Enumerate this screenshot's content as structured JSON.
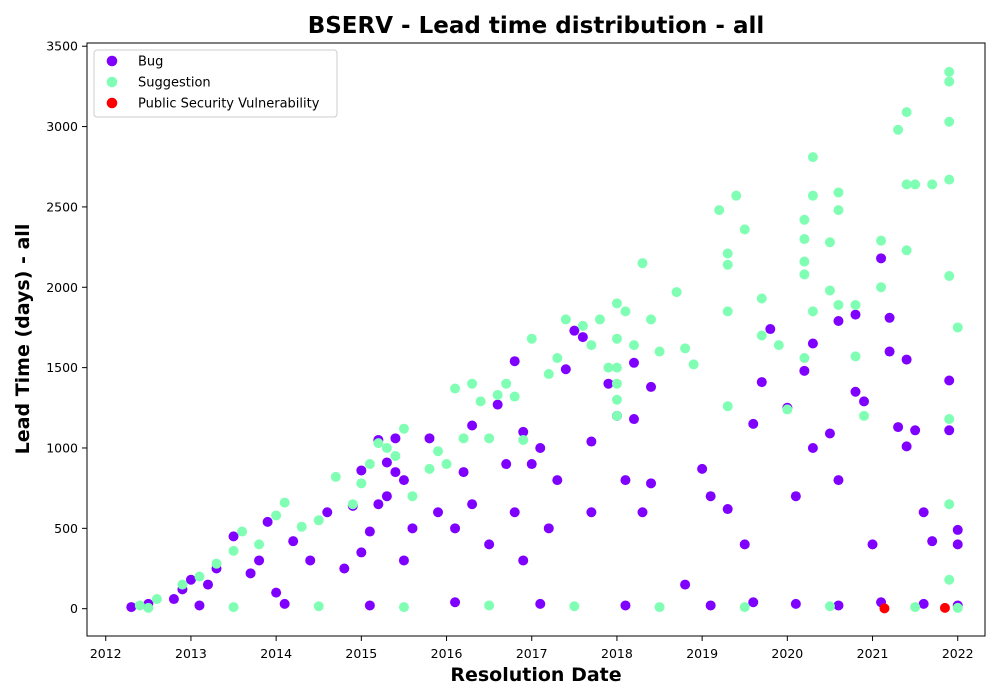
{
  "chart_data": {
    "type": "scatter",
    "title": "BSERV - Lead time distribution - all",
    "xlabel": "Resolution Date",
    "ylabel": "Lead Time (days) - all",
    "xlim": [
      2011.78,
      2022.32
    ],
    "ylim": [
      -170,
      3520
    ],
    "x_ticks": [
      2012,
      2013,
      2014,
      2015,
      2016,
      2017,
      2018,
      2019,
      2020,
      2021,
      2022
    ],
    "y_ticks": [
      0,
      500,
      1000,
      1500,
      2000,
      2500,
      3000,
      3500
    ],
    "grid": false,
    "legend_position": "top-left",
    "series": [
      {
        "name": "Bug",
        "color": "#8000ff",
        "points": [
          [
            2012.3,
            10
          ],
          [
            2012.5,
            30
          ],
          [
            2012.8,
            60
          ],
          [
            2012.9,
            120
          ],
          [
            2013.0,
            180
          ],
          [
            2013.2,
            150
          ],
          [
            2013.3,
            250
          ],
          [
            2013.5,
            450
          ],
          [
            2013.7,
            220
          ],
          [
            2013.8,
            300
          ],
          [
            2013.9,
            540
          ],
          [
            2014.0,
            100
          ],
          [
            2014.2,
            420
          ],
          [
            2014.4,
            300
          ],
          [
            2014.6,
            600
          ],
          [
            2014.8,
            250
          ],
          [
            2014.9,
            640
          ],
          [
            2015.0,
            350
          ],
          [
            2015.0,
            860
          ],
          [
            2015.1,
            480
          ],
          [
            2015.2,
            650
          ],
          [
            2015.2,
            1050
          ],
          [
            2015.3,
            700
          ],
          [
            2015.3,
            910
          ],
          [
            2015.4,
            1060
          ],
          [
            2015.4,
            850
          ],
          [
            2015.5,
            800
          ],
          [
            2015.5,
            300
          ],
          [
            2015.6,
            500
          ],
          [
            2015.8,
            1060
          ],
          [
            2015.9,
            600
          ],
          [
            2016.1,
            500
          ],
          [
            2016.2,
            850
          ],
          [
            2016.3,
            650
          ],
          [
            2016.3,
            1140
          ],
          [
            2016.5,
            400
          ],
          [
            2016.6,
            1270
          ],
          [
            2016.7,
            900
          ],
          [
            2016.8,
            600
          ],
          [
            2016.8,
            1540
          ],
          [
            2016.9,
            1100
          ],
          [
            2016.9,
            300
          ],
          [
            2017.0,
            900
          ],
          [
            2017.1,
            1000
          ],
          [
            2017.2,
            500
          ],
          [
            2017.3,
            800
          ],
          [
            2017.4,
            1490
          ],
          [
            2017.5,
            1730
          ],
          [
            2017.6,
            1690
          ],
          [
            2017.7,
            1040
          ],
          [
            2017.7,
            600
          ],
          [
            2017.9,
            1400
          ],
          [
            2018.0,
            1200
          ],
          [
            2018.1,
            800
          ],
          [
            2018.2,
            1180
          ],
          [
            2018.2,
            1530
          ],
          [
            2018.3,
            600
          ],
          [
            2018.4,
            780
          ],
          [
            2018.4,
            1380
          ],
          [
            2018.8,
            150
          ],
          [
            2019.0,
            870
          ],
          [
            2019.1,
            700
          ],
          [
            2019.3,
            620
          ],
          [
            2019.5,
            400
          ],
          [
            2019.6,
            1150
          ],
          [
            2019.7,
            1410
          ],
          [
            2019.8,
            1740
          ],
          [
            2020.0,
            1250
          ],
          [
            2020.1,
            700
          ],
          [
            2020.2,
            1480
          ],
          [
            2020.3,
            1650
          ],
          [
            2020.3,
            1000
          ],
          [
            2020.5,
            1090
          ],
          [
            2020.6,
            1790
          ],
          [
            2020.6,
            800
          ],
          [
            2020.8,
            1830
          ],
          [
            2020.8,
            1350
          ],
          [
            2020.9,
            1290
          ],
          [
            2021.0,
            400
          ],
          [
            2021.1,
            2180
          ],
          [
            2021.2,
            1810
          ],
          [
            2021.2,
            1600
          ],
          [
            2021.3,
            1130
          ],
          [
            2021.4,
            1010
          ],
          [
            2021.4,
            1550
          ],
          [
            2021.5,
            1110
          ],
          [
            2021.6,
            600
          ],
          [
            2021.7,
            420
          ],
          [
            2021.9,
            1420
          ],
          [
            2021.9,
            1110
          ],
          [
            2022.0,
            490
          ],
          [
            2022.0,
            400
          ],
          [
            2022.0,
            20
          ],
          [
            2013.1,
            20
          ],
          [
            2014.1,
            30
          ],
          [
            2015.1,
            20
          ],
          [
            2016.1,
            40
          ],
          [
            2017.1,
            30
          ],
          [
            2018.1,
            20
          ],
          [
            2019.1,
            20
          ],
          [
            2019.6,
            40
          ],
          [
            2020.1,
            30
          ],
          [
            2020.6,
            20
          ],
          [
            2021.1,
            40
          ],
          [
            2021.6,
            30
          ]
        ]
      },
      {
        "name": "Suggestion",
        "color": "#80ffb4",
        "points": [
          [
            2012.4,
            20
          ],
          [
            2012.6,
            60
          ],
          [
            2012.9,
            150
          ],
          [
            2013.1,
            200
          ],
          [
            2013.3,
            280
          ],
          [
            2013.5,
            360
          ],
          [
            2013.6,
            480
          ],
          [
            2013.8,
            400
          ],
          [
            2014.0,
            580
          ],
          [
            2014.1,
            660
          ],
          [
            2014.3,
            510
          ],
          [
            2014.5,
            550
          ],
          [
            2014.7,
            820
          ],
          [
            2014.9,
            650
          ],
          [
            2015.0,
            780
          ],
          [
            2015.1,
            900
          ],
          [
            2015.2,
            1030
          ],
          [
            2015.3,
            1000
          ],
          [
            2015.4,
            950
          ],
          [
            2015.5,
            1120
          ],
          [
            2015.6,
            700
          ],
          [
            2015.8,
            870
          ],
          [
            2015.9,
            980
          ],
          [
            2016.0,
            900
          ],
          [
            2016.1,
            1370
          ],
          [
            2016.2,
            1060
          ],
          [
            2016.3,
            1400
          ],
          [
            2016.4,
            1290
          ],
          [
            2016.5,
            1060
          ],
          [
            2016.6,
            1330
          ],
          [
            2016.7,
            1400
          ],
          [
            2016.8,
            1320
          ],
          [
            2016.9,
            1050
          ],
          [
            2017.0,
            1680
          ],
          [
            2017.2,
            1460
          ],
          [
            2017.3,
            1560
          ],
          [
            2017.4,
            1800
          ],
          [
            2017.6,
            1760
          ],
          [
            2017.7,
            1640
          ],
          [
            2017.8,
            1800
          ],
          [
            2017.9,
            1500
          ],
          [
            2018.0,
            1900
          ],
          [
            2018.0,
            1680
          ],
          [
            2018.0,
            1500
          ],
          [
            2018.0,
            1400
          ],
          [
            2018.0,
            1300
          ],
          [
            2018.0,
            1200
          ],
          [
            2018.1,
            1850
          ],
          [
            2018.2,
            1640
          ],
          [
            2018.3,
            2150
          ],
          [
            2018.4,
            1800
          ],
          [
            2018.5,
            1600
          ],
          [
            2018.7,
            1970
          ],
          [
            2018.8,
            1620
          ],
          [
            2018.9,
            1520
          ],
          [
            2019.2,
            2480
          ],
          [
            2019.3,
            2210
          ],
          [
            2019.3,
            2140
          ],
          [
            2019.4,
            2570
          ],
          [
            2019.5,
            2360
          ],
          [
            2019.3,
            1850
          ],
          [
            2019.3,
            1260
          ],
          [
            2019.7,
            1700
          ],
          [
            2019.7,
            1930
          ],
          [
            2019.9,
            1640
          ],
          [
            2020.0,
            1240
          ],
          [
            2020.2,
            2420
          ],
          [
            2020.2,
            2300
          ],
          [
            2020.2,
            2160
          ],
          [
            2020.2,
            2080
          ],
          [
            2020.3,
            2810
          ],
          [
            2020.3,
            2570
          ],
          [
            2020.3,
            1850
          ],
          [
            2020.2,
            1560
          ],
          [
            2020.5,
            2280
          ],
          [
            2020.5,
            1980
          ],
          [
            2020.6,
            2590
          ],
          [
            2020.6,
            2480
          ],
          [
            2020.6,
            1890
          ],
          [
            2020.8,
            1890
          ],
          [
            2020.8,
            1570
          ],
          [
            2020.9,
            1200
          ],
          [
            2021.1,
            2290
          ],
          [
            2021.1,
            2000
          ],
          [
            2021.3,
            2980
          ],
          [
            2021.4,
            3090
          ],
          [
            2021.4,
            2640
          ],
          [
            2021.4,
            2230
          ],
          [
            2021.5,
            2640
          ],
          [
            2021.7,
            2640
          ],
          [
            2021.9,
            3340
          ],
          [
            2021.9,
            3280
          ],
          [
            2021.9,
            3030
          ],
          [
            2021.9,
            2670
          ],
          [
            2021.9,
            2070
          ],
          [
            2021.9,
            1180
          ],
          [
            2022.0,
            1750
          ],
          [
            2021.9,
            650
          ],
          [
            2021.9,
            180
          ],
          [
            2012.5,
            5
          ],
          [
            2013.5,
            10
          ],
          [
            2014.5,
            15
          ],
          [
            2015.5,
            10
          ],
          [
            2016.5,
            20
          ],
          [
            2017.5,
            15
          ],
          [
            2018.5,
            10
          ],
          [
            2019.5,
            10
          ],
          [
            2020.5,
            15
          ],
          [
            2021.5,
            10
          ],
          [
            2022.0,
            5
          ]
        ]
      },
      {
        "name": "Public Security Vulnerability",
        "color": "#ff0000",
        "points": [
          [
            2021.14,
            2
          ],
          [
            2021.85,
            5
          ]
        ]
      }
    ]
  }
}
